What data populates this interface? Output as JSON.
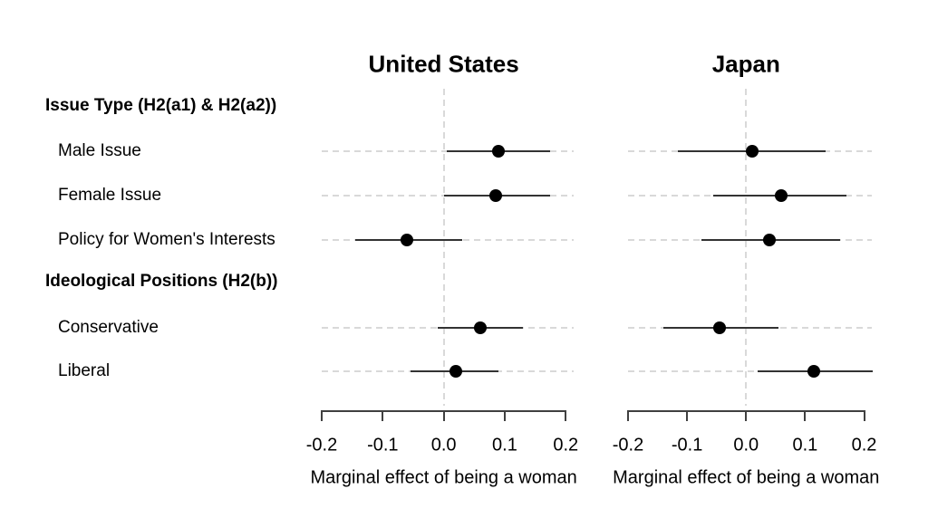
{
  "figure": {
    "background": "#ffffff"
  },
  "chart_data": {
    "type": "dot-whisker",
    "title": "",
    "xlabel": "Marginal effect of being a woman",
    "x_ticks": [
      -0.2,
      -0.1,
      0,
      0.1,
      0.2
    ],
    "x_tick_labels": [
      "-0.2",
      "-0.1",
      "0.0",
      "0.1",
      "0.2"
    ],
    "xlim": [
      -0.2,
      0.213
    ],
    "grid": true,
    "legend_position": "none",
    "rows": [
      {
        "kind": "header",
        "label": "Issue Type (H2(a1) & H2(a2))"
      },
      {
        "kind": "item",
        "label": "Male Issue"
      },
      {
        "kind": "item",
        "label": "Female Issue"
      },
      {
        "kind": "item",
        "label": "Policy for Women's Interests"
      },
      {
        "kind": "header",
        "label": "Ideological Positions (H2(b))"
      },
      {
        "kind": "item",
        "label": "Conservative"
      },
      {
        "kind": "item",
        "label": "Liberal"
      }
    ],
    "panels": [
      {
        "title": "United States",
        "points": [
          {
            "row": "Male Issue",
            "estimate": 0.09,
            "ci_low": 0.005,
            "ci_high": 0.175
          },
          {
            "row": "Female Issue",
            "estimate": 0.085,
            "ci_low": 0.0,
            "ci_high": 0.175
          },
          {
            "row": "Policy for Women's Interests",
            "estimate": -0.06,
            "ci_low": -0.145,
            "ci_high": 0.03
          },
          {
            "row": "Conservative",
            "estimate": 0.06,
            "ci_low": -0.01,
            "ci_high": 0.13
          },
          {
            "row": "Liberal",
            "estimate": 0.02,
            "ci_low": -0.055,
            "ci_high": 0.09
          }
        ]
      },
      {
        "title": "Japan",
        "points": [
          {
            "row": "Male Issue",
            "estimate": 0.01,
            "ci_low": -0.115,
            "ci_high": 0.135
          },
          {
            "row": "Female Issue",
            "estimate": 0.06,
            "ci_low": -0.055,
            "ci_high": 0.17
          },
          {
            "row": "Policy for Women's Interests",
            "estimate": 0.04,
            "ci_low": -0.075,
            "ci_high": 0.16
          },
          {
            "row": "Conservative",
            "estimate": -0.045,
            "ci_low": -0.14,
            "ci_high": 0.055
          },
          {
            "row": "Liberal",
            "estimate": 0.115,
            "ci_low": 0.02,
            "ci_high": 0.215
          }
        ]
      }
    ],
    "colors": {
      "point": "#000000",
      "ci_line": "#333333",
      "grid_dash": "#d9d9d9",
      "axis": "#404040",
      "text": "#000000"
    }
  }
}
